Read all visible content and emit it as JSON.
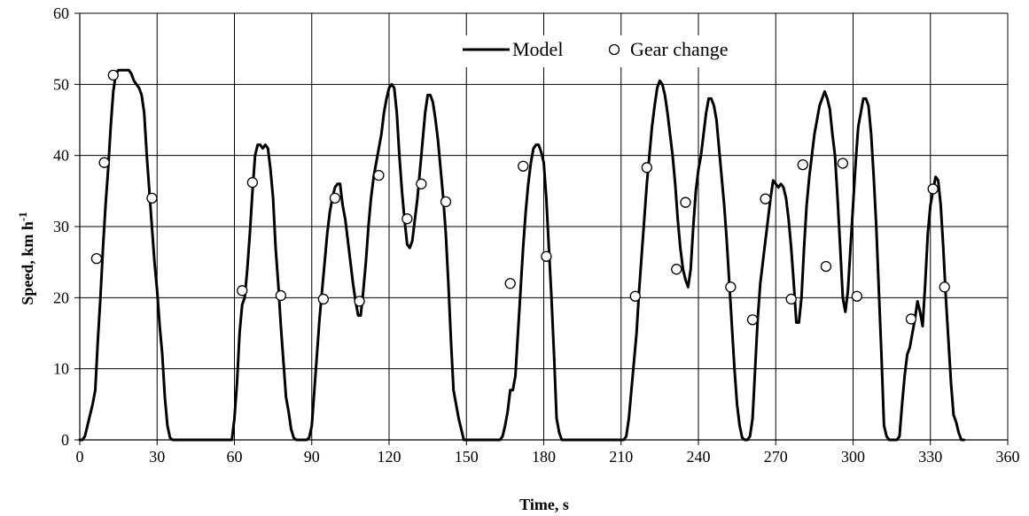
{
  "chart_data": {
    "type": "line",
    "xlabel": "Time, s",
    "ylabel": "Speed, km h",
    "ylabel_superscript": "-1",
    "xlim": [
      0,
      360
    ],
    "ylim": [
      0,
      60
    ],
    "x_ticks": [
      0,
      30,
      60,
      90,
      120,
      150,
      180,
      210,
      240,
      270,
      300,
      330,
      360
    ],
    "y_ticks": [
      0,
      10,
      20,
      30,
      40,
      50,
      60
    ],
    "grid": true,
    "legend_position": "top-center",
    "series": [
      {
        "name": "Model",
        "kind": "line",
        "color": "#000000",
        "points": [
          [
            0,
            0
          ],
          [
            1,
            0
          ],
          [
            2,
            0.5
          ],
          [
            3,
            2
          ],
          [
            5,
            5
          ],
          [
            6,
            7
          ],
          [
            7,
            14
          ],
          [
            8,
            20
          ],
          [
            9,
            27
          ],
          [
            10,
            33
          ],
          [
            11,
            38
          ],
          [
            12,
            44
          ],
          [
            13,
            49
          ],
          [
            14,
            51.5
          ],
          [
            15,
            52
          ],
          [
            17,
            52
          ],
          [
            19,
            52
          ],
          [
            20,
            51.5
          ],
          [
            21,
            50.5
          ],
          [
            23,
            49.5
          ],
          [
            24,
            48.5
          ],
          [
            25,
            46
          ],
          [
            26,
            40
          ],
          [
            27,
            35
          ],
          [
            28,
            30
          ],
          [
            29,
            25
          ],
          [
            30,
            21
          ],
          [
            31,
            16
          ],
          [
            32,
            12
          ],
          [
            33,
            6
          ],
          [
            34,
            2
          ],
          [
            35,
            0.3
          ],
          [
            36,
            0
          ],
          [
            58,
            0
          ],
          [
            59,
            0
          ],
          [
            60,
            3
          ],
          [
            61,
            8
          ],
          [
            62,
            15
          ],
          [
            63,
            19
          ],
          [
            64,
            20
          ],
          [
            65,
            24
          ],
          [
            66,
            29
          ],
          [
            67,
            35
          ],
          [
            68,
            40
          ],
          [
            69,
            41.5
          ],
          [
            70,
            41.5
          ],
          [
            71,
            41
          ],
          [
            72,
            41.5
          ],
          [
            73,
            41
          ],
          [
            74,
            38
          ],
          [
            75,
            34
          ],
          [
            76,
            27
          ],
          [
            77,
            22
          ],
          [
            78,
            16
          ],
          [
            79,
            11
          ],
          [
            80,
            6
          ],
          [
            81,
            4
          ],
          [
            82,
            1.5
          ],
          [
            83,
            0.3
          ],
          [
            84,
            0
          ],
          [
            88,
            0
          ],
          [
            89,
            0.3
          ],
          [
            90,
            2
          ],
          [
            91,
            7
          ],
          [
            92,
            12
          ],
          [
            93,
            17
          ],
          [
            94,
            21
          ],
          [
            95,
            25
          ],
          [
            96,
            29
          ],
          [
            97,
            32
          ],
          [
            98,
            34
          ],
          [
            99,
            35.5
          ],
          [
            100,
            36
          ],
          [
            101,
            36
          ],
          [
            102,
            33
          ],
          [
            103,
            31
          ],
          [
            104,
            28
          ],
          [
            105,
            25
          ],
          [
            106,
            22
          ],
          [
            107,
            19.5
          ],
          [
            108,
            17.5
          ],
          [
            109,
            17.5
          ],
          [
            110,
            21
          ],
          [
            111,
            25
          ],
          [
            112,
            30
          ],
          [
            113,
            34
          ],
          [
            114,
            37
          ],
          [
            115,
            39
          ],
          [
            116,
            41
          ],
          [
            117,
            43
          ],
          [
            118,
            46
          ],
          [
            119,
            48
          ],
          [
            120,
            49.5
          ],
          [
            121,
            50
          ],
          [
            122,
            49.5
          ],
          [
            123,
            46
          ],
          [
            124,
            40
          ],
          [
            125,
            35
          ],
          [
            126,
            31
          ],
          [
            127,
            27.5
          ],
          [
            128,
            27
          ],
          [
            129,
            28
          ],
          [
            130,
            31
          ],
          [
            131,
            34
          ],
          [
            132,
            38
          ],
          [
            133,
            42
          ],
          [
            134,
            46
          ],
          [
            135,
            48.5
          ],
          [
            136,
            48.5
          ],
          [
            137,
            47.5
          ],
          [
            138,
            45
          ],
          [
            139,
            42
          ],
          [
            140,
            38
          ],
          [
            141,
            34
          ],
          [
            142,
            29
          ],
          [
            143,
            22
          ],
          [
            144,
            14
          ],
          [
            145,
            7
          ],
          [
            146,
            5
          ],
          [
            147,
            3
          ],
          [
            148,
            1.5
          ],
          [
            149,
            0
          ],
          [
            163,
            0
          ],
          [
            164,
            0.5
          ],
          [
            165,
            2
          ],
          [
            166,
            4
          ],
          [
            167,
            7
          ],
          [
            168,
            7
          ],
          [
            169,
            9
          ],
          [
            170,
            15
          ],
          [
            171,
            21
          ],
          [
            172,
            27
          ],
          [
            173,
            32
          ],
          [
            174,
            36
          ],
          [
            175,
            39
          ],
          [
            176,
            41
          ],
          [
            177,
            41.5
          ],
          [
            178,
            41.5
          ],
          [
            179,
            40.5
          ],
          [
            180,
            39
          ],
          [
            181,
            34
          ],
          [
            182,
            27
          ],
          [
            183,
            20
          ],
          [
            184,
            12
          ],
          [
            185,
            3
          ],
          [
            186,
            1
          ],
          [
            187,
            0
          ],
          [
            210,
            0
          ],
          [
            211,
            0
          ],
          [
            212,
            0.5
          ],
          [
            213,
            3
          ],
          [
            214,
            7
          ],
          [
            215,
            11
          ],
          [
            216,
            15
          ],
          [
            217,
            21
          ],
          [
            218,
            26
          ],
          [
            219,
            31
          ],
          [
            220,
            36
          ],
          [
            221,
            40
          ],
          [
            222,
            44
          ],
          [
            223,
            47
          ],
          [
            224,
            49.5
          ],
          [
            225,
            50.5
          ],
          [
            226,
            50
          ],
          [
            227,
            48.5
          ],
          [
            228,
            46
          ],
          [
            229,
            43
          ],
          [
            230,
            40
          ],
          [
            231,
            36
          ],
          [
            232,
            31
          ],
          [
            233,
            27
          ],
          [
            234,
            24
          ],
          [
            235,
            22.5
          ],
          [
            236,
            21.5
          ],
          [
            237,
            24
          ],
          [
            238,
            30
          ],
          [
            239,
            35
          ],
          [
            240,
            38
          ],
          [
            241,
            40
          ],
          [
            242,
            43
          ],
          [
            243,
            46
          ],
          [
            244,
            48
          ],
          [
            245,
            48
          ],
          [
            246,
            47
          ],
          [
            247,
            45
          ],
          [
            248,
            41
          ],
          [
            249,
            37
          ],
          [
            250,
            33
          ],
          [
            251,
            28
          ],
          [
            252,
            22
          ],
          [
            253,
            16
          ],
          [
            254,
            10
          ],
          [
            255,
            5
          ],
          [
            256,
            2
          ],
          [
            257,
            0.3
          ],
          [
            258,
            0
          ],
          [
            259,
            0
          ],
          [
            260,
            0.5
          ],
          [
            261,
            3
          ],
          [
            262,
            10
          ],
          [
            263,
            17
          ],
          [
            264,
            22
          ],
          [
            265,
            25
          ],
          [
            266,
            28
          ],
          [
            267,
            31
          ],
          [
            268,
            34
          ],
          [
            269,
            36.5
          ],
          [
            270,
            36
          ],
          [
            271,
            35.5
          ],
          [
            272,
            36
          ],
          [
            273,
            35.5
          ],
          [
            274,
            34
          ],
          [
            275,
            31
          ],
          [
            276,
            27
          ],
          [
            277,
            22
          ],
          [
            278,
            16.5
          ],
          [
            279,
            16.5
          ],
          [
            280,
            20
          ],
          [
            281,
            27
          ],
          [
            282,
            33
          ],
          [
            283,
            37
          ],
          [
            284,
            40
          ],
          [
            285,
            43
          ],
          [
            286,
            45
          ],
          [
            287,
            47
          ],
          [
            288,
            48
          ],
          [
            289,
            49
          ],
          [
            290,
            48
          ],
          [
            291,
            46.5
          ],
          [
            292,
            43
          ],
          [
            293,
            40
          ],
          [
            294,
            34
          ],
          [
            295,
            27
          ],
          [
            296,
            20
          ],
          [
            297,
            18
          ],
          [
            298,
            21
          ],
          [
            299,
            27
          ],
          [
            300,
            33
          ],
          [
            301,
            39
          ],
          [
            302,
            44
          ],
          [
            303,
            46
          ],
          [
            304,
            48
          ],
          [
            305,
            48
          ],
          [
            306,
            47
          ],
          [
            307,
            43
          ],
          [
            308,
            37
          ],
          [
            309,
            30
          ],
          [
            310,
            21
          ],
          [
            311,
            12
          ],
          [
            312,
            2
          ],
          [
            313,
            0.5
          ],
          [
            314,
            0
          ],
          [
            317,
            0
          ],
          [
            318,
            0.5
          ],
          [
            319,
            5
          ],
          [
            320,
            9
          ],
          [
            321,
            12
          ],
          [
            322,
            13
          ],
          [
            323,
            15
          ],
          [
            324,
            17
          ],
          [
            325,
            19.5
          ],
          [
            326,
            18
          ],
          [
            327,
            16
          ],
          [
            328,
            22
          ],
          [
            329,
            29
          ],
          [
            330,
            33
          ],
          [
            331,
            35
          ],
          [
            332,
            37
          ],
          [
            333,
            36.5
          ],
          [
            334,
            33
          ],
          [
            335,
            27
          ],
          [
            336,
            20
          ],
          [
            337,
            14
          ],
          [
            338,
            8
          ],
          [
            339,
            3.5
          ],
          [
            340,
            2.5
          ],
          [
            341,
            1
          ],
          [
            342,
            0
          ],
          [
            343,
            0
          ]
        ]
      },
      {
        "name": "Gear change",
        "kind": "marker",
        "points": [
          [
            6.5,
            25.5
          ],
          [
            9.5,
            39
          ],
          [
            13,
            51.3
          ],
          [
            28,
            34
          ],
          [
            63,
            21
          ],
          [
            67,
            36.2
          ],
          [
            78,
            20.3
          ],
          [
            94.5,
            19.8
          ],
          [
            99,
            34
          ],
          [
            108.5,
            19.5
          ],
          [
            116,
            37.2
          ],
          [
            127,
            31.1
          ],
          [
            132.5,
            36
          ],
          [
            142,
            33.5
          ],
          [
            167,
            22
          ],
          [
            172,
            38.5
          ],
          [
            181,
            25.8
          ],
          [
            215.5,
            20.2
          ],
          [
            220,
            38.3
          ],
          [
            231.5,
            24
          ],
          [
            235,
            33.4
          ],
          [
            252.5,
            21.5
          ],
          [
            261,
            16.9
          ],
          [
            266,
            33.9
          ],
          [
            276,
            19.8
          ],
          [
            280.5,
            38.7
          ],
          [
            289.5,
            24.4
          ],
          [
            296,
            38.9
          ],
          [
            301.5,
            20.2
          ],
          [
            322.5,
            17
          ],
          [
            331,
            35.3
          ],
          [
            335.5,
            21.5
          ]
        ]
      }
    ]
  }
}
